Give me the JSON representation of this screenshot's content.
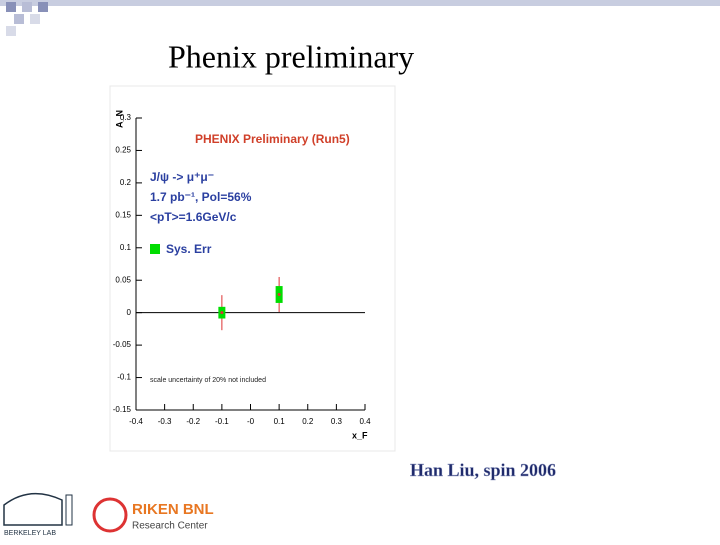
{
  "slide_title": "Phenix preliminary",
  "footer": "Han Liu, spin 2006",
  "logos": [
    "BERKELEY LAB",
    "RIKEN BNL",
    "Research Center"
  ],
  "chart_data": {
    "type": "scatter",
    "title": "PHENIX Preliminary (Run5)",
    "x_label": "x_F",
    "y_label": "A_N",
    "annotations": [
      "J/ψ -> μ⁺μ⁻",
      "1.7 pb⁻¹, Pol=56%",
      "<pT>=1.6GeV/c",
      "scale uncertainty of 20% not included"
    ],
    "series": [
      {
        "name": "Sys. Err",
        "color": "#00dd00",
        "x": [
          -0.1,
          0.1
        ],
        "values": [
          0.0,
          0.028
        ],
        "errors": [
          0.027,
          0.027
        ],
        "sys_errors": [
          0.009,
          0.013
        ]
      }
    ],
    "xlim": [
      -0.4,
      0.4
    ],
    "xticks": [
      -0.4,
      -0.3,
      -0.2,
      -0.1,
      {
        "value": 0,
        "label": "-0"
      },
      0.1,
      0.2,
      0.3,
      0.4
    ],
    "ylim": [
      -0.15,
      0.3
    ],
    "yticks": [
      -0.15,
      -0.1,
      -0.05,
      0,
      0.05,
      0.1,
      0.15,
      0.2,
      0.25,
      0.3
    ]
  }
}
